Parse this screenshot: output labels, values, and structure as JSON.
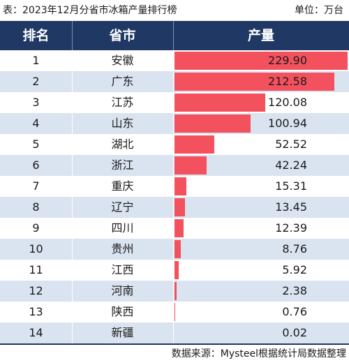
{
  "title_left": "表：2023年12月分省市冰箱产量排行榜",
  "title_right": "单位：万台",
  "headers": {
    "rank": "排名",
    "province": "省市",
    "output": "产量"
  },
  "source": "数据来源：Mysteel根据统计局数据整理",
  "colors": {
    "header_bg": "#1f3864",
    "bar": "#f4515f",
    "alt_row": "#dae3f0"
  },
  "chart_data": {
    "type": "table",
    "columns": [
      "排名",
      "省市",
      "产量"
    ],
    "unit": "万台",
    "rows": [
      {
        "rank": "1",
        "province": "安徽",
        "value": "229.90"
      },
      {
        "rank": "2",
        "province": "广东",
        "value": "212.58"
      },
      {
        "rank": "3",
        "province": "江苏",
        "value": "120.08"
      },
      {
        "rank": "4",
        "province": "山东",
        "value": "100.94"
      },
      {
        "rank": "5",
        "province": "湖北",
        "value": "52.52"
      },
      {
        "rank": "6",
        "province": "浙江",
        "value": "42.24"
      },
      {
        "rank": "7",
        "province": "重庆",
        "value": "15.31"
      },
      {
        "rank": "8",
        "province": "辽宁",
        "value": "13.45"
      },
      {
        "rank": "9",
        "province": "四川",
        "value": "12.39"
      },
      {
        "rank": "10",
        "province": "贵州",
        "value": "8.76"
      },
      {
        "rank": "11",
        "province": "江西",
        "value": "5.92"
      },
      {
        "rank": "12",
        "province": "河南",
        "value": "2.38"
      },
      {
        "rank": "13",
        "province": "陕西",
        "value": "0.76"
      },
      {
        "rank": "14",
        "province": "新疆",
        "value": "0.02"
      }
    ]
  }
}
